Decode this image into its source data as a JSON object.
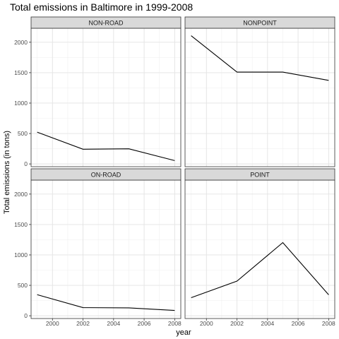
{
  "chart_data": {
    "type": "line",
    "title": "Total emissions in Baltimore in 1999-2008",
    "xlabel": "year",
    "ylabel": "Total emissions (in tons)",
    "xlim": [
      1998.6,
      2008.4
    ],
    "ylim": [
      -45,
      2230
    ],
    "x_ticks": [
      "2000",
      "2002",
      "2004",
      "2006",
      "2008"
    ],
    "y_ticks": [
      "0",
      "500",
      "1000",
      "1500",
      "2000"
    ],
    "grid": true,
    "line_color": "#000000",
    "strip_fill": "#d9d9d9",
    "panels": [
      {
        "label": "NON-ROAD",
        "x": [
          1999,
          2002,
          2005,
          2008
        ],
        "y": [
          522,
          242,
          249,
          55
        ]
      },
      {
        "label": "NONPOINT",
        "x": [
          1999,
          2002,
          2005,
          2008
        ],
        "y": [
          2108,
          1510,
          1510,
          1373
        ]
      },
      {
        "label": "ON-ROAD",
        "x": [
          1999,
          2002,
          2005,
          2008
        ],
        "y": [
          347,
          134,
          130,
          88
        ]
      },
      {
        "label": "POINT",
        "x": [
          1999,
          2002,
          2005,
          2008
        ],
        "y": [
          297,
          570,
          1203,
          345
        ]
      }
    ]
  }
}
